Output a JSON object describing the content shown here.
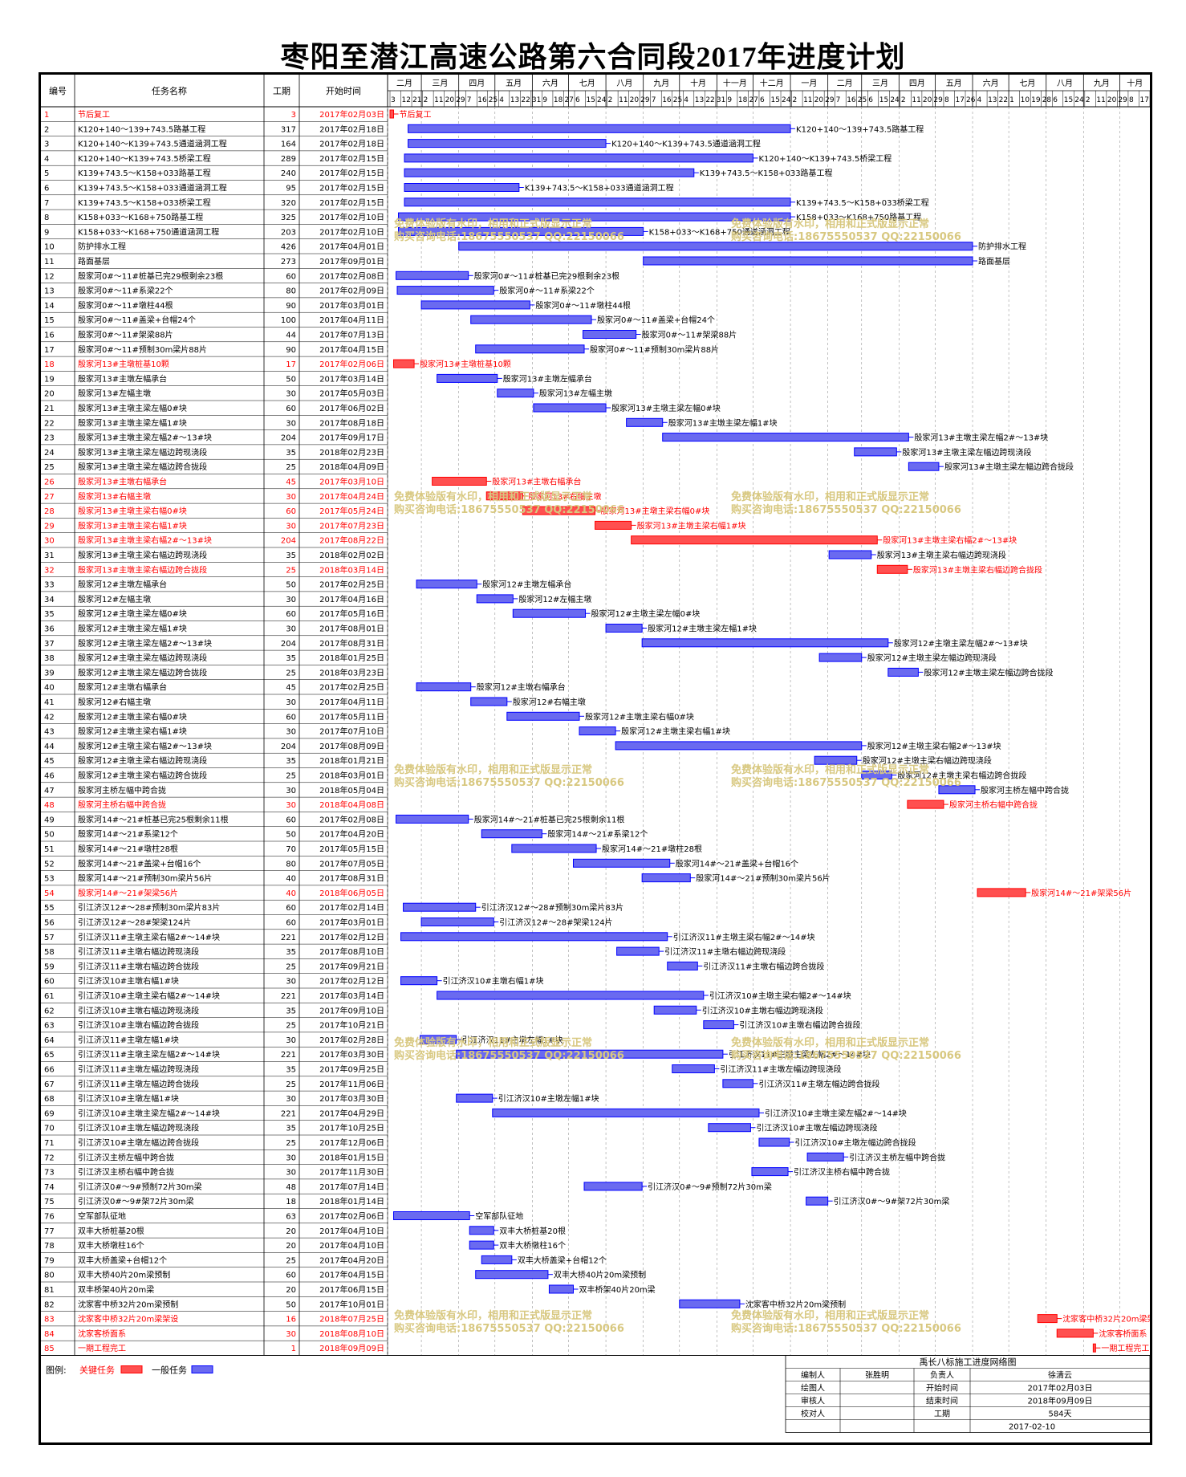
{
  "title": "枣阳至潜江高速公路第六合同段2017年进度计划",
  "columns": [
    "编号",
    "任务名称",
    "工期",
    "开始时间"
  ],
  "timeline": {
    "months": [
      {
        "label": "二月",
        "ticks": [
          3,
          12,
          21
        ]
      },
      {
        "label": "三月",
        "ticks": [
          2,
          11,
          20,
          29
        ]
      },
      {
        "label": "四月",
        "ticks": [
          7,
          16,
          25
        ]
      },
      {
        "label": "五月",
        "ticks": [
          4,
          13,
          22,
          31
        ]
      },
      {
        "label": "六月",
        "ticks": [
          9,
          18,
          27
        ]
      },
      {
        "label": "七月",
        "ticks": [
          6,
          15,
          24
        ]
      },
      {
        "label": "八月",
        "ticks": [
          2,
          11,
          20,
          29
        ]
      },
      {
        "label": "九月",
        "ticks": [
          7,
          16,
          25
        ]
      },
      {
        "label": "十月",
        "ticks": [
          4,
          13,
          22,
          31
        ]
      },
      {
        "label": "十一月",
        "ticks": [
          9,
          18,
          27
        ]
      },
      {
        "label": "十二月",
        "ticks": [
          6,
          15,
          24
        ]
      },
      {
        "label": "一月",
        "ticks": [
          2,
          11,
          20,
          29
        ]
      },
      {
        "label": "二月",
        "ticks": [
          7,
          16,
          25
        ]
      },
      {
        "label": "三月",
        "ticks": [
          6,
          15,
          24
        ]
      },
      {
        "label": "四月",
        "ticks": [
          2,
          11,
          20,
          29
        ]
      },
      {
        "label": "五月",
        "ticks": [
          8,
          17,
          26
        ]
      },
      {
        "label": "六月",
        "ticks": [
          4,
          13,
          22
        ]
      },
      {
        "label": "七月",
        "ticks": [
          1,
          10,
          19,
          28
        ]
      },
      {
        "label": "八月",
        "ticks": [
          6,
          15,
          24
        ]
      },
      {
        "label": "九月",
        "ticks": [
          2,
          11,
          20,
          29
        ]
      },
      {
        "label": "十月",
        "ticks": [
          8,
          17,
          26
        ]
      },
      {
        "label": "",
        "ticks": [
          4
        ]
      }
    ]
  },
  "watermark": {
    "line1": "免费体验版有水印，相用和正式版显示正常",
    "line2": "购买咨询电话:18675550537 QQ:22150066"
  },
  "legend": {
    "label": "图例:",
    "critical": "关键任务",
    "normal": "一般任务",
    "critical_color": "#ff0000",
    "normal_color": "#0000ff",
    "critical_fill": "#ff5050",
    "normal_fill": "#6a6af0"
  },
  "info_table": {
    "title": "禹长八标施工进度网络图",
    "rows": [
      [
        "编制人",
        "张胜明",
        "负责人",
        "徐清云"
      ],
      [
        "绘图人",
        "",
        "开始时间",
        "2017年02月03日"
      ],
      [
        "审核人",
        "",
        "结束时间",
        "2018年09月09日"
      ],
      [
        "校对人",
        "",
        "工期",
        "584天"
      ]
    ],
    "date": "2017-02-10"
  },
  "chart_data": {
    "type": "gantt",
    "time_range": [
      "2017-02-01",
      "2018-10-26"
    ],
    "tasks": [
      {
        "id": "1",
        "name": "节后复工",
        "duration": 3,
        "start": "2017年02月03日",
        "critical": true
      },
      {
        "id": "2",
        "name": "K120+140～139+743.5路基工程",
        "duration": 317,
        "start": "2017年02月18日",
        "critical": false
      },
      {
        "id": "3",
        "name": "K120+140～K139+743.5通道涵洞工程",
        "duration": 164,
        "start": "2017年02月18日",
        "critical": false
      },
      {
        "id": "4",
        "name": "K120+140～K139+743.5桥梁工程",
        "duration": 289,
        "start": "2017年02月15日",
        "critical": false
      },
      {
        "id": "5",
        "name": "K139+743.5～K158+033路基工程",
        "duration": 240,
        "start": "2017年02月15日",
        "critical": false
      },
      {
        "id": "6",
        "name": "K139+743.5～K158+033通道涵洞工程",
        "duration": 95,
        "start": "2017年02月15日",
        "critical": false
      },
      {
        "id": "7",
        "name": "K139+743.5～K158+033桥梁工程",
        "duration": 320,
        "start": "2017年02月15日",
        "critical": false
      },
      {
        "id": "8",
        "name": "K158+033～K168+750路基工程",
        "duration": 325,
        "start": "2017年02月10日",
        "critical": false
      },
      {
        "id": "9",
        "name": "K158+033～K168+750通道涵洞工程",
        "duration": 203,
        "start": "2017年02月10日",
        "critical": false
      },
      {
        "id": "10",
        "name": "防护排水工程",
        "duration": 426,
        "start": "2017年04月01日",
        "critical": false
      },
      {
        "id": "11",
        "name": "路面基层",
        "duration": 273,
        "start": "2017年09月01日",
        "critical": false
      },
      {
        "id": "12",
        "name": "殷家河0#～11#桩基已完29根剩余23根",
        "duration": 60,
        "start": "2017年02月08日",
        "critical": false
      },
      {
        "id": "13",
        "name": "殷家河0#～11#系梁22个",
        "duration": 80,
        "start": "2017年02月09日",
        "critical": false
      },
      {
        "id": "14",
        "name": "殷家河0#～11#墩柱44根",
        "duration": 90,
        "start": "2017年03月01日",
        "critical": false
      },
      {
        "id": "15",
        "name": "殷家河0#～11#盖梁+台帽24个",
        "duration": 100,
        "start": "2017年04月11日",
        "critical": false
      },
      {
        "id": "16",
        "name": "殷家河0#～11#架梁88片",
        "duration": 44,
        "start": "2017年07月13日",
        "critical": false
      },
      {
        "id": "17",
        "name": "殷家河0#～11#预制30m梁片88片",
        "duration": 90,
        "start": "2017年04月15日",
        "critical": false
      },
      {
        "id": "18",
        "name": "殷家河13#主墩桩基10颗",
        "duration": 17,
        "start": "2017年02月06日",
        "critical": true
      },
      {
        "id": "19",
        "name": "殷家河13#主墩左幅承台",
        "duration": 50,
        "start": "2017年03月14日",
        "critical": false
      },
      {
        "id": "20",
        "name": "殷家河13#左幅主墩",
        "duration": 30,
        "start": "2017年05月03日",
        "critical": false
      },
      {
        "id": "21",
        "name": "殷家河13#主墩主梁左幅0#块",
        "duration": 60,
        "start": "2017年06月02日",
        "critical": false
      },
      {
        "id": "22",
        "name": "殷家河13#主墩主梁左幅1#块",
        "duration": 30,
        "start": "2017年08月18日",
        "critical": false
      },
      {
        "id": "23",
        "name": "殷家河13#主墩主梁左幅2#～13#块",
        "duration": 204,
        "start": "2017年09月17日",
        "critical": false
      },
      {
        "id": "24",
        "name": "殷家河13#主墩主梁左幅边跨现浇段",
        "duration": 35,
        "start": "2018年02月23日",
        "critical": false
      },
      {
        "id": "25",
        "name": "殷家河13#主墩主梁左幅边跨合拢段",
        "duration": 25,
        "start": "2018年04月09日",
        "critical": false
      },
      {
        "id": "26",
        "name": "殷家河13#主墩右幅承台",
        "duration": 45,
        "start": "2017年03月10日",
        "critical": true
      },
      {
        "id": "27",
        "name": "殷家河13#右幅主墩",
        "duration": 30,
        "start": "2017年04月24日",
        "critical": true
      },
      {
        "id": "28",
        "name": "殷家河13#主墩主梁右幅0#块",
        "duration": 60,
        "start": "2017年05月24日",
        "critical": true
      },
      {
        "id": "29",
        "name": "殷家河13#主墩主梁右幅1#块",
        "duration": 30,
        "start": "2017年07月23日",
        "critical": true
      },
      {
        "id": "30",
        "name": "殷家河13#主墩主梁右幅2#～13#块",
        "duration": 204,
        "start": "2017年08月22日",
        "critical": true
      },
      {
        "id": "31",
        "name": "殷家河13#主墩主梁右幅边跨现浇段",
        "duration": 35,
        "start": "2018年02月02日",
        "critical": false
      },
      {
        "id": "32",
        "name": "殷家河13#主墩主梁右幅边跨合拢段",
        "duration": 25,
        "start": "2018年03月14日",
        "critical": true
      },
      {
        "id": "33",
        "name": "殷家河12#主墩左幅承台",
        "duration": 50,
        "start": "2017年02月25日",
        "critical": false
      },
      {
        "id": "34",
        "name": "殷家河12#左幅主墩",
        "duration": 30,
        "start": "2017年04月16日",
        "critical": false
      },
      {
        "id": "35",
        "name": "殷家河12#主墩主梁左幅0#块",
        "duration": 60,
        "start": "2017年05月16日",
        "critical": false
      },
      {
        "id": "36",
        "name": "殷家河12#主墩主梁左幅1#块",
        "duration": 30,
        "start": "2017年08月01日",
        "critical": false
      },
      {
        "id": "37",
        "name": "殷家河12#主墩主梁左幅2#～13#块",
        "duration": 204,
        "start": "2017年08月31日",
        "critical": false
      },
      {
        "id": "38",
        "name": "殷家河12#主墩主梁左幅边跨现浇段",
        "duration": 35,
        "start": "2018年01月25日",
        "critical": false
      },
      {
        "id": "39",
        "name": "殷家河12#主墩主梁左幅边跨合拢段",
        "duration": 25,
        "start": "2018年03月23日",
        "critical": false
      },
      {
        "id": "40",
        "name": "殷家河12#主墩右幅承台",
        "duration": 45,
        "start": "2017年02月25日",
        "critical": false
      },
      {
        "id": "41",
        "name": "殷家河12#右幅主墩",
        "duration": 30,
        "start": "2017年04月11日",
        "critical": false
      },
      {
        "id": "42",
        "name": "殷家河12#主墩主梁右幅0#块",
        "duration": 60,
        "start": "2017年05月11日",
        "critical": false
      },
      {
        "id": "43",
        "name": "殷家河12#主墩主梁右幅1#块",
        "duration": 30,
        "start": "2017年07月10日",
        "critical": false
      },
      {
        "id": "44",
        "name": "殷家河12#主墩主梁右幅2#～13#块",
        "duration": 204,
        "start": "2017年08月09日",
        "critical": false
      },
      {
        "id": "45",
        "name": "殷家河12#主墩主梁右幅边跨现浇段",
        "duration": 35,
        "start": "2018年01月21日",
        "critical": false
      },
      {
        "id": "46",
        "name": "殷家河12#主墩主梁右幅边跨合拢段",
        "duration": 25,
        "start": "2018年03月01日",
        "critical": false
      },
      {
        "id": "47",
        "name": "殷家河主桥左幅中跨合拢",
        "duration": 30,
        "start": "2018年05月04日",
        "critical": false
      },
      {
        "id": "48",
        "name": "殷家河主桥右幅中跨合拢",
        "duration": 30,
        "start": "2018年04月08日",
        "critical": true
      },
      {
        "id": "49",
        "name": "殷家河14#～21#桩基已完25根剩余11根",
        "duration": 60,
        "start": "2017年02月08日",
        "critical": false
      },
      {
        "id": "50",
        "name": "殷家河14#～21#系梁12个",
        "duration": 50,
        "start": "2017年04月20日",
        "critical": false
      },
      {
        "id": "51",
        "name": "殷家河14#～21#墩柱28根",
        "duration": 70,
        "start": "2017年05月15日",
        "critical": false
      },
      {
        "id": "52",
        "name": "殷家河14#～21#盖梁+台帽16个",
        "duration": 80,
        "start": "2017年07月05日",
        "critical": false
      },
      {
        "id": "53",
        "name": "殷家河14#～21#预制30m梁片56片",
        "duration": 40,
        "start": "2017年08月31日",
        "critical": false
      },
      {
        "id": "54",
        "name": "殷家河14#～21#架梁56片",
        "duration": 40,
        "start": "2018年06月05日",
        "critical": true
      },
      {
        "id": "55",
        "name": "引江济汉12#～28#预制30m梁片83片",
        "duration": 60,
        "start": "2017年02月14日",
        "critical": false
      },
      {
        "id": "56",
        "name": "引江济汉12#～28#架梁124片",
        "duration": 60,
        "start": "2017年03月01日",
        "critical": false
      },
      {
        "id": "57",
        "name": "引江济汉11#主墩主梁右幅2#～14#块",
        "duration": 221,
        "start": "2017年02月12日",
        "critical": false
      },
      {
        "id": "58",
        "name": "引江济汉11#主墩右幅边跨现浇段",
        "duration": 35,
        "start": "2017年08月10日",
        "critical": false
      },
      {
        "id": "59",
        "name": "引江济汉11#主墩右幅边跨合拢段",
        "duration": 25,
        "start": "2017年09月21日",
        "critical": false
      },
      {
        "id": "60",
        "name": "引江济汉10#主墩右幅1#块",
        "duration": 30,
        "start": "2017年02月12日",
        "critical": false
      },
      {
        "id": "61",
        "name": "引江济汉10#主墩主梁右幅2#～14#块",
        "duration": 221,
        "start": "2017年03月14日",
        "critical": false
      },
      {
        "id": "62",
        "name": "引江济汉10#主墩右幅边跨现浇段",
        "duration": 35,
        "start": "2017年09月10日",
        "critical": false
      },
      {
        "id": "63",
        "name": "引江济汉10#主墩右幅边跨合拢段",
        "duration": 25,
        "start": "2017年10月21日",
        "critical": false
      },
      {
        "id": "64",
        "name": "引江济汉11#主墩左幅1#块",
        "duration": 30,
        "start": "2017年02月28日",
        "critical": false
      },
      {
        "id": "65",
        "name": "引江济汉11#主墩主梁左幅2#～14#块",
        "duration": 221,
        "start": "2017年03月30日",
        "critical": false
      },
      {
        "id": "66",
        "name": "引江济汉11#主墩左幅边跨现浇段",
        "duration": 35,
        "start": "2017年09月25日",
        "critical": false
      },
      {
        "id": "67",
        "name": "引江济汉11#主墩左幅边跨合拢段",
        "duration": 25,
        "start": "2017年11月06日",
        "critical": false
      },
      {
        "id": "68",
        "name": "引江济汉10#主墩左幅1#块",
        "duration": 30,
        "start": "2017年03月30日",
        "critical": false
      },
      {
        "id": "69",
        "name": "引江济汉10#主墩主梁左幅2#～14#块",
        "duration": 221,
        "start": "2017年04月29日",
        "critical": false
      },
      {
        "id": "70",
        "name": "引江济汉10#主墩左幅边跨现浇段",
        "duration": 35,
        "start": "2017年10月25日",
        "critical": false
      },
      {
        "id": "71",
        "name": "引江济汉10#主墩左幅边跨合拢段",
        "duration": 25,
        "start": "2017年12月06日",
        "critical": false
      },
      {
        "id": "72",
        "name": "引江济汉主桥左幅中跨合拢",
        "duration": 30,
        "start": "2018年01月15日",
        "critical": false
      },
      {
        "id": "73",
        "name": "引江济汉主桥右幅中跨合拢",
        "duration": 30,
        "start": "2017年11月30日",
        "critical": false
      },
      {
        "id": "74",
        "name": "引江济汉0#～9#预制72片30m梁",
        "duration": 48,
        "start": "2017年07月14日",
        "critical": false
      },
      {
        "id": "75",
        "name": "引江济汉0#～9#架72片30m梁",
        "duration": 18,
        "start": "2018年01月14日",
        "critical": false
      },
      {
        "id": "76",
        "name": "空军部队征地",
        "duration": 63,
        "start": "2017年02月06日",
        "critical": false
      },
      {
        "id": "77",
        "name": "双丰大桥桩基20根",
        "duration": 20,
        "start": "2017年04月10日",
        "critical": false
      },
      {
        "id": "78",
        "name": "双丰大桥墩柱16个",
        "duration": 20,
        "start": "2017年04月10日",
        "critical": false
      },
      {
        "id": "79",
        "name": "双丰大桥盖梁+台帽12个",
        "duration": 25,
        "start": "2017年04月20日",
        "critical": false
      },
      {
        "id": "80",
        "name": "双丰大桥40片20m梁预制",
        "duration": 60,
        "start": "2017年04月15日",
        "critical": false
      },
      {
        "id": "81",
        "name": "双丰桥架40片20m梁",
        "duration": 20,
        "start": "2017年06月15日",
        "critical": false
      },
      {
        "id": "82",
        "name": "沈家客中桥32片20m梁预制",
        "duration": 50,
        "start": "2017年10月01日",
        "critical": false
      },
      {
        "id": "83",
        "name": "沈家客中桥32片20m梁架设",
        "duration": 16,
        "start": "2018年07月25日",
        "critical": true
      },
      {
        "id": "84",
        "name": "沈家客桥面系",
        "duration": 30,
        "start": "2018年08月10日",
        "critical": true
      },
      {
        "id": "85",
        "name": "一期工程完工",
        "duration": 1,
        "start": "2018年09月09日",
        "critical": true
      }
    ]
  }
}
